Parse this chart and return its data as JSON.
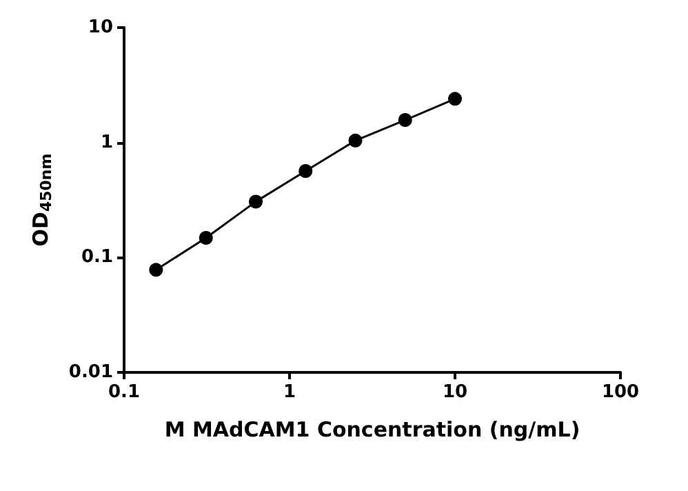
{
  "chart_data": {
    "type": "line",
    "xlabel": "M MAdCAM1 Concentration (ng/mL)",
    "ylabel": "OD$_{450nm}$",
    "x": [
      0.156,
      0.3125,
      0.625,
      1.25,
      2.5,
      5,
      10
    ],
    "series": [
      {
        "color": "#000000",
        "values": [
          0.078,
          0.148,
          0.306,
          0.565,
          1.04,
          1.57,
          2.4
        ]
      }
    ],
    "log": "xy",
    "xlim": [
      0.1,
      100
    ],
    "xticks": [
      0.1,
      1,
      10,
      100
    ],
    "ylim": [
      0.01,
      10
    ],
    "yticks": [
      0.01,
      0.1,
      1,
      10
    ],
    "grid": false,
    "marker": "circle",
    "line_style": "solid"
  }
}
